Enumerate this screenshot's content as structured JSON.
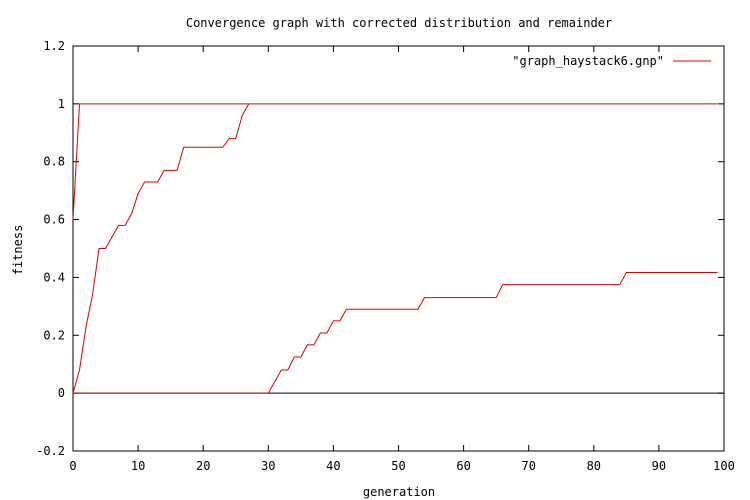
{
  "chart_data": {
    "type": "line",
    "title": "Convergence graph with corrected distribution and remainder",
    "xlabel": "generation",
    "ylabel": "fitness",
    "xlim": [
      0,
      100
    ],
    "ylim": [
      -0.2,
      1.2
    ],
    "xticks": [
      0,
      10,
      20,
      30,
      40,
      50,
      60,
      70,
      80,
      90,
      100
    ],
    "yticks": [
      -0.2,
      0,
      0.2,
      0.4,
      0.6,
      0.8,
      1,
      1.2
    ],
    "ytick_labels": [
      "-0.2",
      "0",
      "0.2",
      "0.4",
      "0.6",
      "0.8",
      "1",
      "1.2"
    ],
    "grid": false,
    "legend_position": "top-right",
    "color": "#dd0000",
    "series": [
      {
        "name": "\"graph_haystack6.gnp\"",
        "lines": [
          {
            "x": [
              0,
              1,
              99
            ],
            "y": [
              0.6,
              1,
              1
            ]
          },
          {
            "x": [
              0,
              1,
              2,
              3,
              4,
              5,
              6,
              7,
              8,
              9,
              10,
              11,
              12,
              13,
              14,
              15,
              16,
              17,
              18,
              19,
              20,
              21,
              22,
              23,
              24,
              25,
              26,
              27
            ],
            "y": [
              0,
              0.08,
              0.23,
              0.34,
              0.5,
              0.5,
              0.54,
              0.58,
              0.58,
              0.62,
              0.69,
              0.73,
              0.73,
              0.73,
              0.77,
              0.77,
              0.77,
              0.85,
              0.85,
              0.85,
              0.85,
              0.85,
              0.85,
              0.85,
              0.88,
              0.88,
              0.96,
              1
            ]
          },
          {
            "x": [
              0,
              30,
              31,
              32,
              33,
              34,
              35,
              36,
              37,
              38,
              39,
              40,
              41,
              42,
              53,
              54,
              55,
              64,
              65,
              66,
              84,
              85,
              99
            ],
            "y": [
              0,
              0,
              0.04,
              0.08,
              0.08,
              0.125,
              0.125,
              0.167,
              0.167,
              0.208,
              0.208,
              0.25,
              0.25,
              0.29,
              0.29,
              0.33,
              0.33,
              0.33,
              0.33,
              0.375,
              0.375,
              0.417,
              0.417
            ]
          }
        ]
      }
    ]
  }
}
